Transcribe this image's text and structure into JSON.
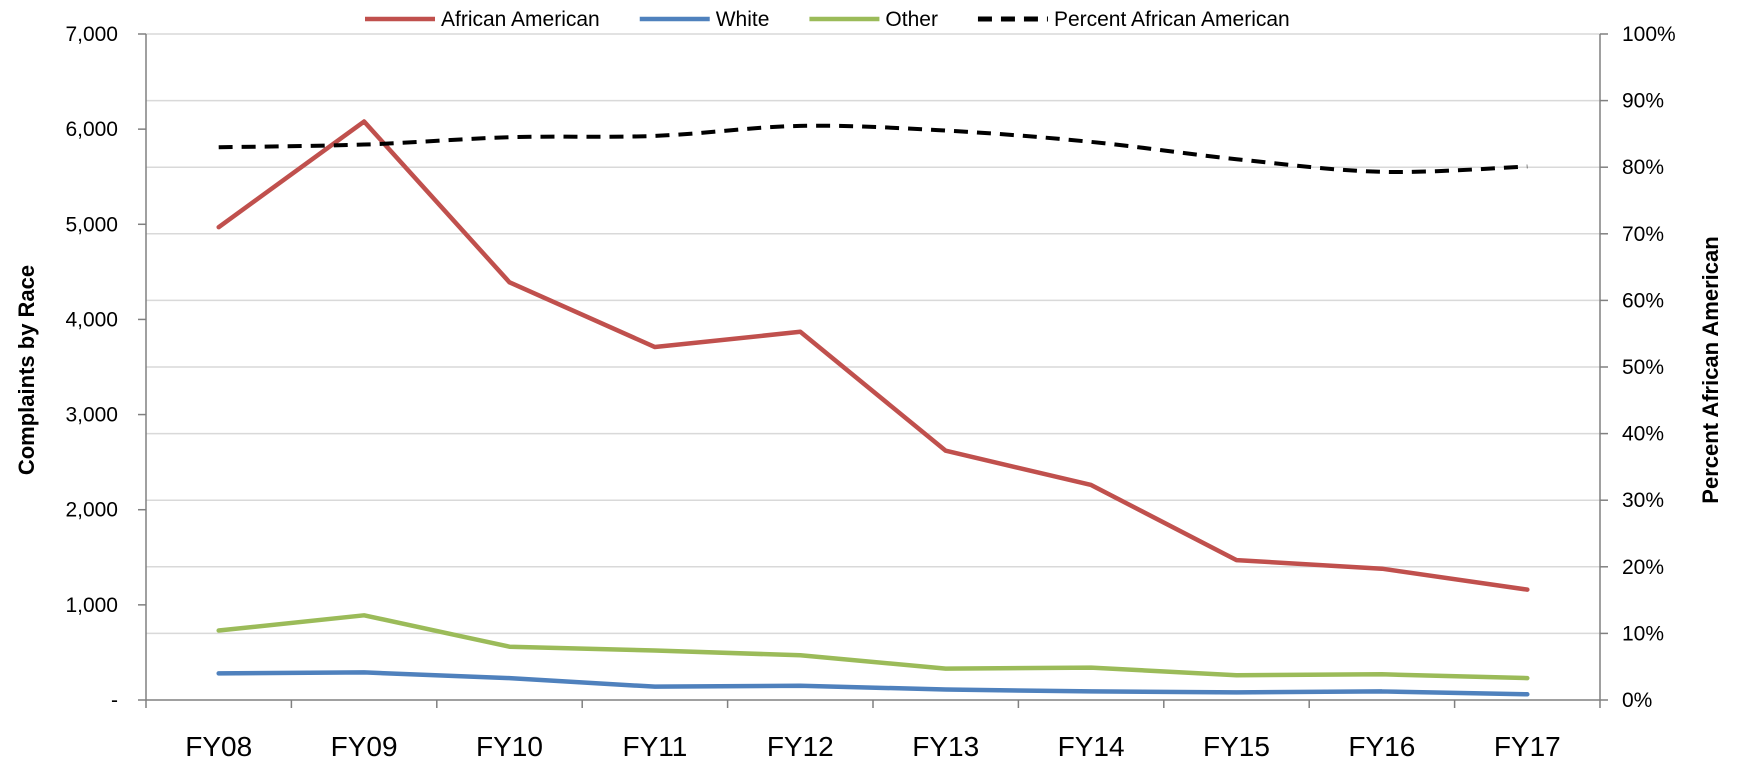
{
  "chart_data": {
    "type": "line",
    "categories": [
      "FY08",
      "FY09",
      "FY10",
      "FY11",
      "FY12",
      "FY13",
      "FY14",
      "FY15",
      "FY16",
      "FY17"
    ],
    "series": [
      {
        "name": "African American",
        "axis": "left",
        "color": "#C0504D",
        "dashed": false,
        "values": [
          4970,
          6080,
          4390,
          3710,
          3870,
          2620,
          2260,
          1470,
          1380,
          1160
        ]
      },
      {
        "name": "White",
        "axis": "left",
        "color": "#4F81BD",
        "dashed": false,
        "values": [
          280,
          290,
          230,
          140,
          150,
          110,
          90,
          80,
          90,
          60
        ]
      },
      {
        "name": "Other",
        "axis": "left",
        "color": "#9BBB59",
        "dashed": false,
        "values": [
          730,
          890,
          560,
          520,
          470,
          330,
          340,
          260,
          270,
          230
        ]
      },
      {
        "name": "Percent African American",
        "axis": "right",
        "color": "#000000",
        "dashed": true,
        "values": [
          0.83,
          0.834,
          0.845,
          0.847,
          0.862,
          0.855,
          0.838,
          0.812,
          0.793,
          0.801
        ]
      }
    ],
    "ylabel": "Complaints by Race",
    "y2label": "Percent African American",
    "ylim": [
      0,
      7000
    ],
    "y2lim": [
      0,
      1
    ],
    "y_ticks": [
      {
        "value": 0,
        "label": "-"
      },
      {
        "value": 1000,
        "label": "1,000"
      },
      {
        "value": 2000,
        "label": "2,000"
      },
      {
        "value": 3000,
        "label": "3,000"
      },
      {
        "value": 4000,
        "label": "4,000"
      },
      {
        "value": 5000,
        "label": "5,000"
      },
      {
        "value": 6000,
        "label": "6,000"
      },
      {
        "value": 7000,
        "label": "7,000"
      }
    ],
    "y2_ticks": [
      {
        "value": 0,
        "label": "0%"
      },
      {
        "value": 0.1,
        "label": "10%"
      },
      {
        "value": 0.2,
        "label": "20%"
      },
      {
        "value": 0.3,
        "label": "30%"
      },
      {
        "value": 0.4,
        "label": "40%"
      },
      {
        "value": 0.5,
        "label": "50%"
      },
      {
        "value": 0.6,
        "label": "60%"
      },
      {
        "value": 0.7,
        "label": "70%"
      },
      {
        "value": 0.8,
        "label": "80%"
      },
      {
        "value": 0.9,
        "label": "90%"
      },
      {
        "value": 1.0,
        "label": "100%"
      }
    ],
    "grid": true,
    "legend": "top-center"
  }
}
